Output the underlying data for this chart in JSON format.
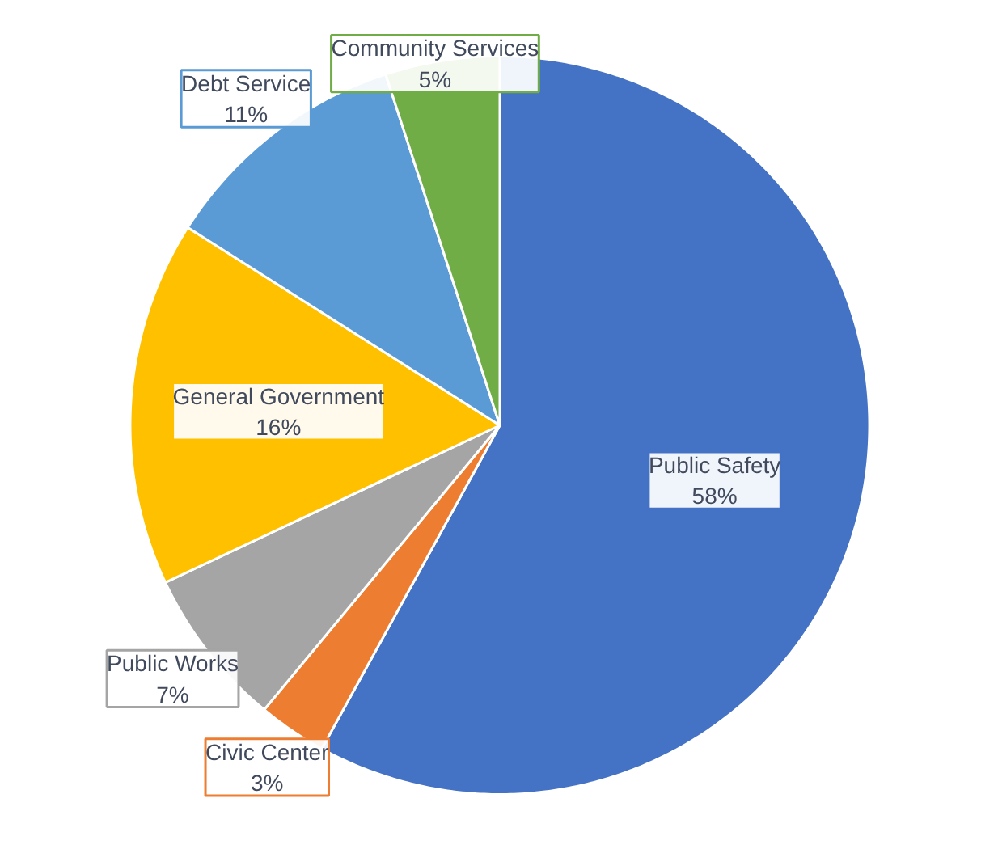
{
  "chart_data": {
    "type": "pie",
    "categories": [
      "Public Safety",
      "Civic Center",
      "Public Works",
      "General Government",
      "Debt Service",
      "Community Services"
    ],
    "values": [
      58,
      3,
      7,
      16,
      11,
      5
    ],
    "value_labels": [
      "58%",
      "3%",
      "7%",
      "16%",
      "11%",
      "5%"
    ],
    "colors": [
      "#4472c4",
      "#ed7d31",
      "#a5a5a5",
      "#ffc000",
      "#5b9bd5",
      "#70ad47"
    ]
  }
}
